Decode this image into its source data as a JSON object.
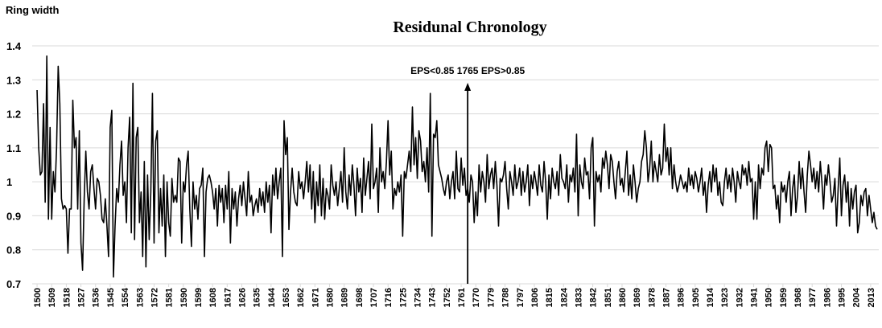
{
  "chart_data": {
    "type": "line",
    "title": "Residunal Chronology",
    "y_label": "Ring width",
    "color": "#000000",
    "grid": true,
    "annotation": {
      "text": "EPS<0.85 1765 EPS>0.85",
      "x": 1765
    },
    "ylim": [
      0.7,
      1.4
    ],
    "yticks": [
      0.7,
      0.8,
      0.9,
      1,
      1.1,
      1.2,
      1.3,
      1.4
    ],
    "xlim": [
      1497,
      2018
    ],
    "xticks": [
      1500,
      1509,
      1518,
      1527,
      1536,
      1545,
      1554,
      1563,
      1572,
      1581,
      1590,
      1599,
      1608,
      1617,
      1626,
      1635,
      1644,
      1653,
      1662,
      1671,
      1680,
      1689,
      1698,
      1707,
      1716,
      1725,
      1734,
      1743,
      1752,
      1761,
      1770,
      1779,
      1788,
      1797,
      1806,
      1815,
      1824,
      1833,
      1842,
      1851,
      1860,
      1869,
      1878,
      1887,
      1896,
      1905,
      1914,
      1923,
      1932,
      1941,
      1950,
      1959,
      1968,
      1977,
      1986,
      1995,
      2004,
      2013
    ],
    "x": [
      1500,
      1501,
      1502,
      1503,
      1504,
      1505,
      1506,
      1507,
      1508,
      1509,
      1510,
      1511,
      1512,
      1513,
      1514,
      1515,
      1516,
      1517,
      1518,
      1519,
      1520,
      1521,
      1522,
      1523,
      1524,
      1525,
      1526,
      1527,
      1528,
      1529,
      1530,
      1531,
      1532,
      1533,
      1534,
      1535,
      1536,
      1537,
      1538,
      1539,
      1540,
      1541,
      1542,
      1543,
      1544,
      1545,
      1546,
      1547,
      1548,
      1549,
      1550,
      1551,
      1552,
      1553,
      1554,
      1555,
      1556,
      1557,
      1558,
      1559,
      1560,
      1561,
      1562,
      1563,
      1564,
      1565,
      1566,
      1567,
      1568,
      1569,
      1570,
      1571,
      1572,
      1573,
      1574,
      1575,
      1576,
      1577,
      1578,
      1579,
      1580,
      1581,
      1582,
      1583,
      1584,
      1585,
      1586,
      1587,
      1588,
      1589,
      1590,
      1591,
      1592,
      1593,
      1594,
      1595,
      1596,
      1597,
      1598,
      1599,
      1600,
      1601,
      1602,
      1603,
      1604,
      1605,
      1606,
      1607,
      1608,
      1609,
      1610,
      1611,
      1612,
      1613,
      1614,
      1615,
      1616,
      1617,
      1618,
      1619,
      1620,
      1621,
      1622,
      1623,
      1624,
      1625,
      1626,
      1627,
      1628,
      1629,
      1630,
      1631,
      1632,
      1633,
      1634,
      1635,
      1636,
      1637,
      1638,
      1639,
      1640,
      1641,
      1642,
      1643,
      1644,
      1645,
      1646,
      1647,
      1648,
      1649,
      1650,
      1651,
      1652,
      1653,
      1654,
      1655,
      1656,
      1657,
      1658,
      1659,
      1660,
      1661,
      1662,
      1663,
      1664,
      1665,
      1666,
      1667,
      1668,
      1669,
      1670,
      1671,
      1672,
      1673,
      1674,
      1675,
      1676,
      1677,
      1678,
      1679,
      1680,
      1681,
      1682,
      1683,
      1684,
      1685,
      1686,
      1687,
      1688,
      1689,
      1690,
      1691,
      1692,
      1693,
      1694,
      1695,
      1696,
      1697,
      1698,
      1699,
      1700,
      1701,
      1702,
      1703,
      1704,
      1705,
      1706,
      1707,
      1708,
      1709,
      1710,
      1711,
      1712,
      1713,
      1714,
      1715,
      1716,
      1717,
      1718,
      1719,
      1720,
      1721,
      1722,
      1723,
      1724,
      1725,
      1726,
      1727,
      1728,
      1729,
      1730,
      1731,
      1732,
      1733,
      1734,
      1735,
      1736,
      1737,
      1738,
      1739,
      1740,
      1741,
      1742,
      1743,
      1744,
      1745,
      1746,
      1747,
      1748,
      1749,
      1750,
      1751,
      1752,
      1753,
      1754,
      1755,
      1756,
      1757,
      1758,
      1759,
      1760,
      1761,
      1762,
      1763,
      1764,
      1765,
      1766,
      1767,
      1768,
      1769,
      1770,
      1771,
      1772,
      1773,
      1774,
      1775,
      1776,
      1777,
      1778,
      1779,
      1780,
      1781,
      1782,
      1783,
      1784,
      1785,
      1786,
      1787,
      1788,
      1789,
      1790,
      1791,
      1792,
      1793,
      1794,
      1795,
      1796,
      1797,
      1798,
      1799,
      1800,
      1801,
      1802,
      1803,
      1804,
      1805,
      1806,
      1807,
      1808,
      1809,
      1810,
      1811,
      1812,
      1813,
      1814,
      1815,
      1816,
      1817,
      1818,
      1819,
      1820,
      1821,
      1822,
      1823,
      1824,
      1825,
      1826,
      1827,
      1828,
      1829,
      1830,
      1831,
      1832,
      1833,
      1834,
      1835,
      1836,
      1837,
      1838,
      1839,
      1840,
      1841,
      1842,
      1843,
      1844,
      1845,
      1846,
      1847,
      1848,
      1849,
      1850,
      1851,
      1852,
      1853,
      1854,
      1855,
      1856,
      1857,
      1858,
      1859,
      1860,
      1861,
      1862,
      1863,
      1864,
      1865,
      1866,
      1867,
      1868,
      1869,
      1870,
      1871,
      1872,
      1873,
      1874,
      1875,
      1876,
      1877,
      1878,
      1879,
      1880,
      1881,
      1882,
      1883,
      1884,
      1885,
      1886,
      1887,
      1888,
      1889,
      1890,
      1891,
      1892,
      1893,
      1894,
      1895,
      1896,
      1897,
      1898,
      1899,
      1900,
      1901,
      1902,
      1903,
      1904,
      1905,
      1906,
      1907,
      1908,
      1909,
      1910,
      1911,
      1912,
      1913,
      1914,
      1915,
      1916,
      1917,
      1918,
      1919,
      1920,
      1921,
      1922,
      1923,
      1924,
      1925,
      1926,
      1927,
      1928,
      1929,
      1930,
      1931,
      1932,
      1933,
      1934,
      1935,
      1936,
      1937,
      1938,
      1939,
      1940,
      1941,
      1942,
      1943,
      1944,
      1945,
      1946,
      1947,
      1948,
      1949,
      1950,
      1951,
      1952,
      1953,
      1954,
      1955,
      1956,
      1957,
      1958,
      1959,
      1960,
      1961,
      1962,
      1963,
      1964,
      1965,
      1966,
      1967,
      1968,
      1969,
      1970,
      1971,
      1972,
      1973,
      1974,
      1975,
      1976,
      1977,
      1978,
      1979,
      1980,
      1981,
      1982,
      1983,
      1984,
      1985,
      1986,
      1987,
      1988,
      1989,
      1990,
      1991,
      1992,
      1993,
      1994,
      1995,
      1996,
      1997,
      1998,
      1999,
      2000,
      2001,
      2002,
      2003,
      2004,
      2005,
      2006,
      2007,
      2008,
      2009,
      2010,
      2011,
      2012,
      2013,
      2014,
      2015,
      2016,
      2017
    ],
    "values": [
      1.27,
      1.1,
      1.02,
      1.03,
      1.23,
      0.94,
      1.37,
      0.89,
      1.16,
      0.89,
      1.03,
      0.97,
      1.1,
      1.34,
      1.23,
      0.95,
      0.92,
      0.93,
      0.92,
      0.79,
      0.92,
      0.92,
      1.24,
      1.1,
      1.13,
      0.92,
      1.15,
      0.82,
      0.74,
      0.95,
      1.09,
      0.97,
      0.92,
      1.03,
      1.05,
      0.98,
      0.92,
      1.01,
      1.0,
      0.96,
      0.89,
      0.88,
      0.95,
      0.87,
      0.78,
      1.16,
      1.21,
      0.72,
      0.87,
      0.98,
      0.94,
      1.05,
      1.12,
      0.96,
      1.0,
      0.88,
      1.1,
      1.19,
      0.85,
      1.29,
      0.83,
      1.13,
      1.16,
      0.88,
      0.97,
      0.78,
      1.06,
      0.75,
      1.02,
      0.83,
      0.97,
      1.26,
      0.82,
      1.12,
      1.15,
      0.85,
      0.98,
      0.87,
      1.02,
      0.78,
      1.0,
      0.88,
      0.84,
      1.01,
      0.94,
      0.96,
      0.94,
      1.07,
      1.06,
      0.82,
      1.0,
      0.97,
      1.05,
      1.09,
      0.92,
      0.81,
      1.0,
      0.92,
      0.96,
      0.89,
      0.98,
      0.99,
      1.04,
      0.78,
      0.97,
      1.01,
      1.02,
      1.0,
      0.97,
      0.92,
      0.98,
      0.87,
      0.99,
      0.94,
      0.98,
      0.88,
      0.99,
      0.92,
      1.03,
      0.82,
      0.98,
      0.92,
      0.97,
      0.87,
      0.95,
      0.99,
      0.93,
      1.0,
      0.95,
      0.9,
      1.03,
      0.94,
      0.96,
      0.9,
      0.93,
      0.95,
      0.91,
      0.98,
      0.93,
      0.97,
      0.91,
      1.0,
      0.94,
      0.99,
      0.85,
      1.02,
      0.96,
      1.04,
      0.95,
      1.0,
      1.04,
      0.78,
      1.18,
      1.08,
      1.13,
      0.86,
      0.97,
      1.04,
      0.97,
      0.94,
      0.93,
      1.03,
      0.98,
      1.0,
      0.95,
      1.0,
      1.06,
      0.97,
      1.05,
      0.92,
      1.03,
      0.88,
      1.0,
      0.93,
      1.05,
      0.9,
      1.01,
      0.89,
      0.98,
      0.96,
      0.92,
      1.05,
      0.99,
      0.96,
      1.0,
      0.93,
      0.98,
      1.03,
      0.94,
      1.1,
      0.97,
      0.92,
      1.02,
      0.96,
      1.05,
      0.99,
      0.9,
      1.04,
      0.97,
      1.01,
      0.91,
      1.07,
      0.96,
      1.01,
      1.06,
      0.95,
      1.17,
      0.98,
      1.0,
      1.04,
      0.91,
      1.1,
      1.0,
      1.03,
      0.98,
      1.06,
      1.18,
      1.02,
      1.09,
      0.92,
      0.98,
      0.96,
      1.0,
      0.97,
      1.02,
      0.84,
      1.03,
      1.01,
      1.05,
      1.09,
      1.03,
      1.22,
      1.05,
      1.13,
      1.01,
      1.15,
      1.12,
      1.03,
      1.06,
      1.0,
      1.1,
      0.97,
      1.26,
      0.84,
      1.14,
      1.13,
      1.18,
      1.05,
      1.03,
      1.01,
      0.98,
      0.96,
      1.0,
      1.02,
      0.95,
      1.0,
      1.03,
      0.95,
      1.09,
      0.98,
      0.97,
      1.07,
      0.99,
      1.04,
      0.96,
      0.98,
      0.94,
      1.02,
      1.0,
      0.88,
      0.97,
      0.9,
      1.05,
      0.97,
      1.03,
      1.0,
      0.94,
      1.08,
      0.98,
      1.02,
      1.04,
      0.98,
      1.06,
      0.99,
      0.87,
      1.01,
      1.0,
      1.02,
      1.06,
      0.98,
      0.92,
      1.03,
      1.0,
      0.96,
      1.05,
      0.98,
      1.0,
      1.04,
      0.96,
      1.03,
      0.97,
      1.0,
      1.05,
      0.93,
      1.02,
      0.98,
      1.03,
      1.0,
      0.96,
      1.05,
      0.99,
      0.97,
      1.06,
      1.0,
      0.89,
      1.02,
      0.95,
      1.04,
      1.0,
      0.98,
      1.03,
      0.96,
      1.08,
      1.01,
      1.0,
      0.98,
      1.05,
      0.94,
      1.02,
      1.0,
      1.04,
      0.97,
      1.14,
      0.9,
      1.05,
      1.0,
      0.98,
      1.07,
      1.02,
      1.03,
      0.95,
      1.1,
      1.13,
      0.87,
      1.03,
      1.0,
      1.02,
      0.97,
      1.07,
      1.04,
      1.09,
      1.05,
      0.98,
      1.08,
      1.06,
      1.0,
      0.95,
      1.03,
      1.06,
      0.99,
      1.01,
      0.97,
      1.03,
      1.09,
      0.96,
      1.02,
      0.95,
      1.05,
      1.0,
      0.94,
      0.98,
      1.0,
      1.06,
      1.08,
      1.15,
      1.1,
      1.0,
      1.04,
      1.12,
      1.0,
      1.06,
      1.03,
      1.0,
      1.08,
      1.02,
      1.04,
      1.17,
      1.06,
      1.1,
      1.02,
      1.1,
      0.98,
      1.05,
      1.0,
      0.97,
      0.99,
      1.02,
      1.0,
      0.98,
      1.0,
      0.97,
      1.04,
      0.99,
      1.02,
      0.98,
      1.03,
      1.01,
      0.97,
      1.0,
      1.04,
      0.96,
      1.0,
      0.91,
      0.99,
      1.03,
      0.97,
      1.05,
      1.0,
      1.04,
      0.96,
      1.0,
      0.94,
      0.93,
      1.0,
      1.04,
      0.98,
      1.02,
      0.97,
      1.04,
      1.0,
      0.94,
      1.03,
      1.0,
      0.98,
      1.05,
      1.02,
      1.04,
      0.99,
      1.06,
      1.0,
      1.01,
      0.89,
      1.0,
      0.89,
      1.05,
      0.98,
      1.04,
      1.02,
      1.1,
      1.12,
      1.03,
      1.11,
      1.1,
      0.98,
      0.99,
      0.92,
      0.96,
      0.88,
      1.0,
      0.97,
      0.99,
      0.94,
      1.0,
      1.03,
      0.9,
      0.98,
      1.02,
      0.91,
      0.96,
      1.06,
      0.98,
      1.04,
      0.97,
      0.91,
      1.02,
      1.09,
      1.05,
      1.0,
      1.04,
      0.98,
      1.03,
      0.97,
      1.06,
      1.0,
      0.92,
      1.02,
      0.99,
      1.05,
      1.0,
      0.94,
      0.96,
      1.01,
      0.87,
      0.98,
      1.07,
      0.9,
      0.99,
      1.02,
      0.94,
      1.0,
      0.87,
      0.98,
      0.92,
      0.97,
      0.99,
      0.85,
      0.88,
      0.96,
      0.93,
      0.97,
      0.98,
      0.9,
      0.96,
      0.92,
      0.88,
      0.91,
      0.87,
      0.86
    ]
  }
}
